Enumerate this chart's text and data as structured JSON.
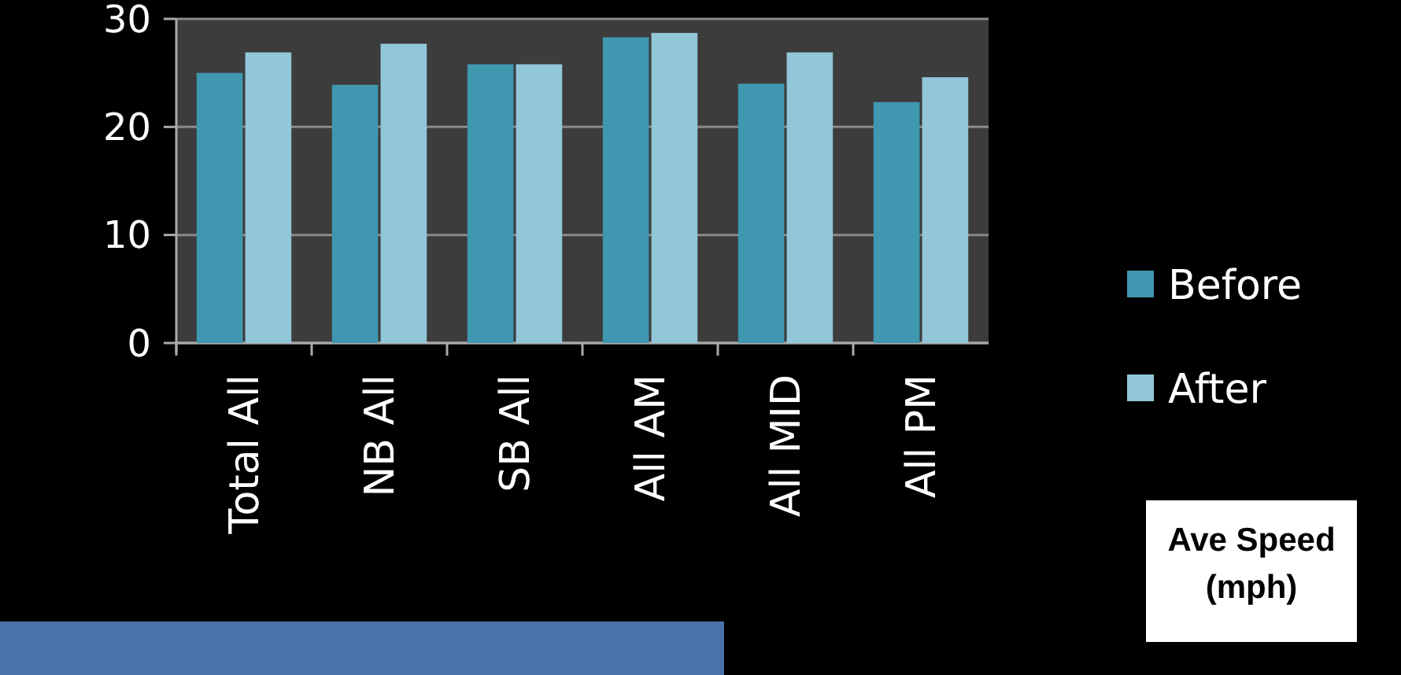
{
  "chart_data": {
    "type": "bar",
    "categories": [
      "Total All",
      "NB All",
      "SB All",
      "All AM",
      "All MID",
      "All PM"
    ],
    "series": [
      {
        "name": "Before",
        "color": "#3f97b0",
        "values": [
          25.0,
          23.9,
          25.8,
          28.3,
          24.0,
          22.3
        ]
      },
      {
        "name": "After",
        "color": "#92c6d9",
        "values": [
          26.9,
          27.7,
          25.8,
          28.7,
          26.9,
          24.6
        ]
      }
    ],
    "ylim": [
      0,
      30
    ],
    "yticks": [
      0,
      10,
      20,
      30
    ],
    "grid": "y",
    "legend": "right",
    "annotations": [
      "Ave Speed (mph)"
    ]
  }
}
